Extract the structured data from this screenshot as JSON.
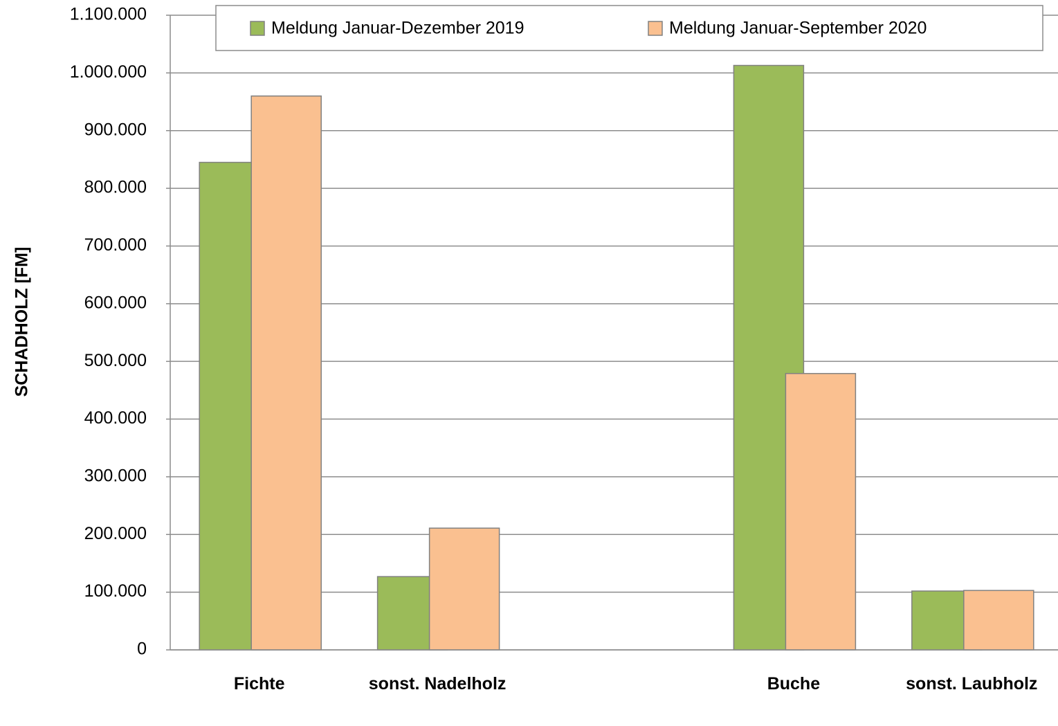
{
  "chart_data": {
    "type": "bar",
    "y_label": "SCHADHOLZ [FM]",
    "categories": [
      "Fichte",
      "sonst. Nadelholz",
      null,
      "Buche",
      "sonst. Laubholz"
    ],
    "series": [
      {
        "name": "Meldung Januar-Dezember 2019",
        "color": "#9bbb59",
        "values": [
          845000,
          127000,
          null,
          1013000,
          102000
        ]
      },
      {
        "name": "Meldung Januar-September 2020",
        "color": "#fac090",
        "values": [
          960000,
          211000,
          null,
          479000,
          103000
        ]
      }
    ],
    "ylim": [
      0,
      1100000
    ],
    "yticks": [
      0,
      {
        "value": 100000,
        "label": "100.000"
      },
      {
        "value": 200000,
        "label": "200.000"
      },
      {
        "value": 300000,
        "label": "300.000"
      },
      {
        "value": 400000,
        "label": "400.000"
      },
      {
        "value": 500000,
        "label": "500.000"
      },
      {
        "value": 600000,
        "label": "600.000"
      },
      {
        "value": 700000,
        "label": "700.000"
      },
      {
        "value": 800000,
        "label": "800.000"
      },
      {
        "value": 900000,
        "label": "900.000"
      },
      {
        "value": 1000000,
        "label": "1.000.000"
      },
      {
        "value": 1100000,
        "label": "1.100.000"
      }
    ],
    "grid": true,
    "legend": "top"
  }
}
